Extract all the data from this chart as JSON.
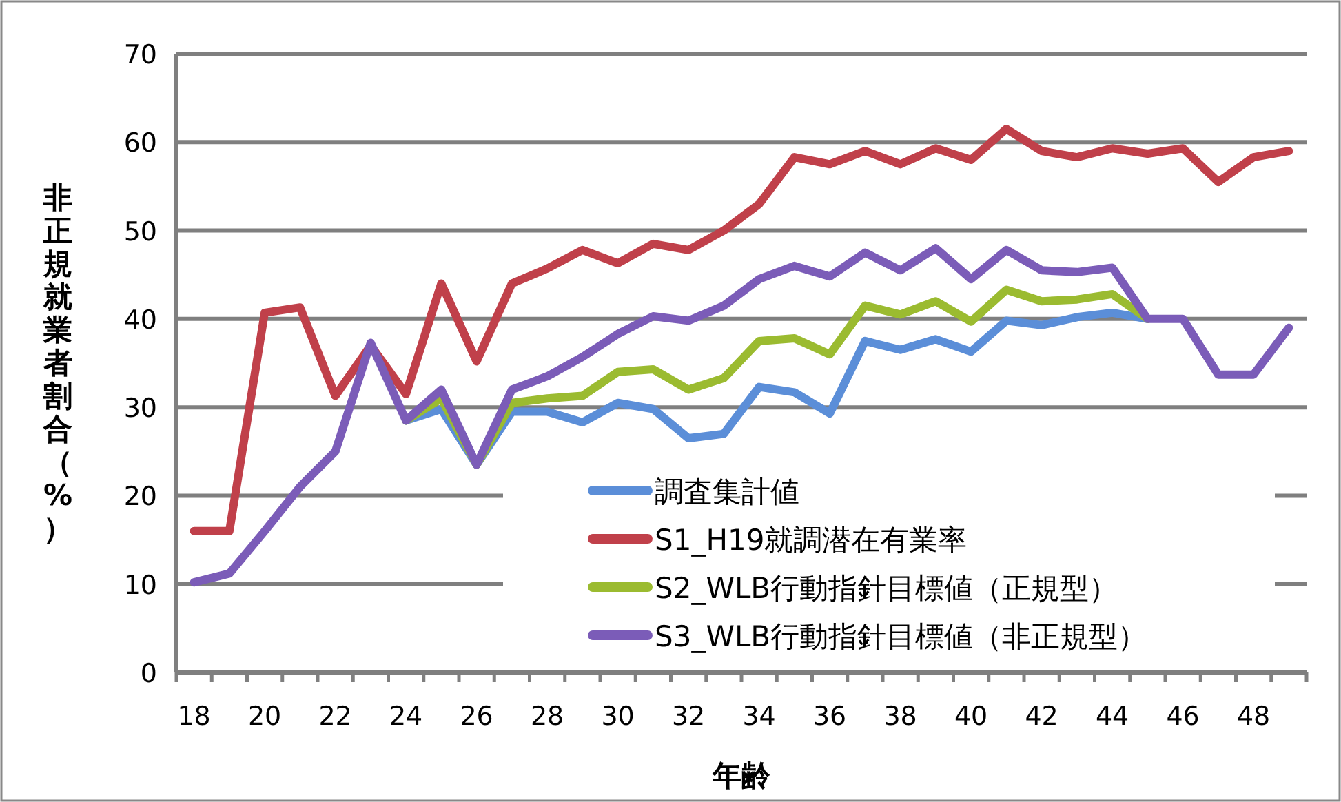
{
  "chart_data": {
    "type": "line",
    "xlabel": "年齢",
    "ylabel": "非正規就業者割合（%）",
    "x": [
      18,
      19,
      20,
      21,
      22,
      23,
      24,
      25,
      26,
      27,
      28,
      29,
      30,
      31,
      32,
      33,
      34,
      35,
      36,
      37,
      38,
      39,
      40,
      41,
      42,
      43,
      44,
      45,
      46,
      47,
      48,
      49
    ],
    "xlim": [
      17.5,
      49.5
    ],
    "xticks": [
      18,
      20,
      22,
      24,
      26,
      28,
      30,
      32,
      34,
      36,
      38,
      40,
      42,
      44,
      46,
      48
    ],
    "ylim": [
      0,
      70
    ],
    "yticks": [
      0,
      10,
      20,
      30,
      40,
      50,
      60,
      70
    ],
    "grid": "y",
    "legend": "bottom",
    "marker": "none",
    "line_style": "solid",
    "series": [
      {
        "name": "調査集計値",
        "color": "#5b8ed8",
        "values": [
          null,
          null,
          null,
          null,
          null,
          null,
          28.5,
          29.8,
          23.5,
          29.5,
          29.5,
          28.3,
          30.5,
          29.8,
          26.5,
          27,
          32.3,
          31.7,
          29.3,
          37.5,
          36.5,
          37.7,
          36.3,
          39.8,
          39.3,
          40.2,
          40.7,
          40,
          null,
          null,
          null,
          null
        ]
      },
      {
        "name": "S1_H19就調潜在有業率",
        "color": "#c0404a",
        "values": [
          16,
          16,
          40.7,
          41.3,
          31.3,
          37,
          31.5,
          44,
          35.2,
          44,
          45.7,
          47.8,
          46.3,
          48.5,
          47.8,
          50,
          53,
          58.3,
          57.5,
          59,
          57.5,
          59.3,
          58,
          61.5,
          59,
          58.3,
          59.3,
          58.7,
          59.3,
          55.5,
          58.3,
          59
        ]
      },
      {
        "name": "S2_WLB行動指針目標値（正規型）",
        "color": "#9bbb30",
        "values": [
          null,
          null,
          null,
          null,
          null,
          null,
          28.5,
          31,
          23.5,
          30.5,
          31,
          31.3,
          34,
          34.3,
          32,
          33.3,
          37.5,
          37.8,
          36,
          41.5,
          40.5,
          42,
          39.7,
          43.3,
          42,
          42.2,
          42.8,
          40,
          null,
          null,
          null,
          null
        ]
      },
      {
        "name": "S3_WLB行動指針目標値（非正規型）",
        "color": "#7b5cb8",
        "values": [
          10.2,
          11.2,
          16,
          21,
          25,
          37.3,
          28.5,
          32,
          23.5,
          32,
          33.5,
          35.7,
          38.3,
          40.3,
          39.8,
          41.5,
          44.5,
          46,
          44.8,
          47.5,
          45.5,
          48,
          44.5,
          47.8,
          45.5,
          45.3,
          45.8,
          40,
          40,
          33.7,
          33.7,
          39
        ]
      }
    ]
  }
}
